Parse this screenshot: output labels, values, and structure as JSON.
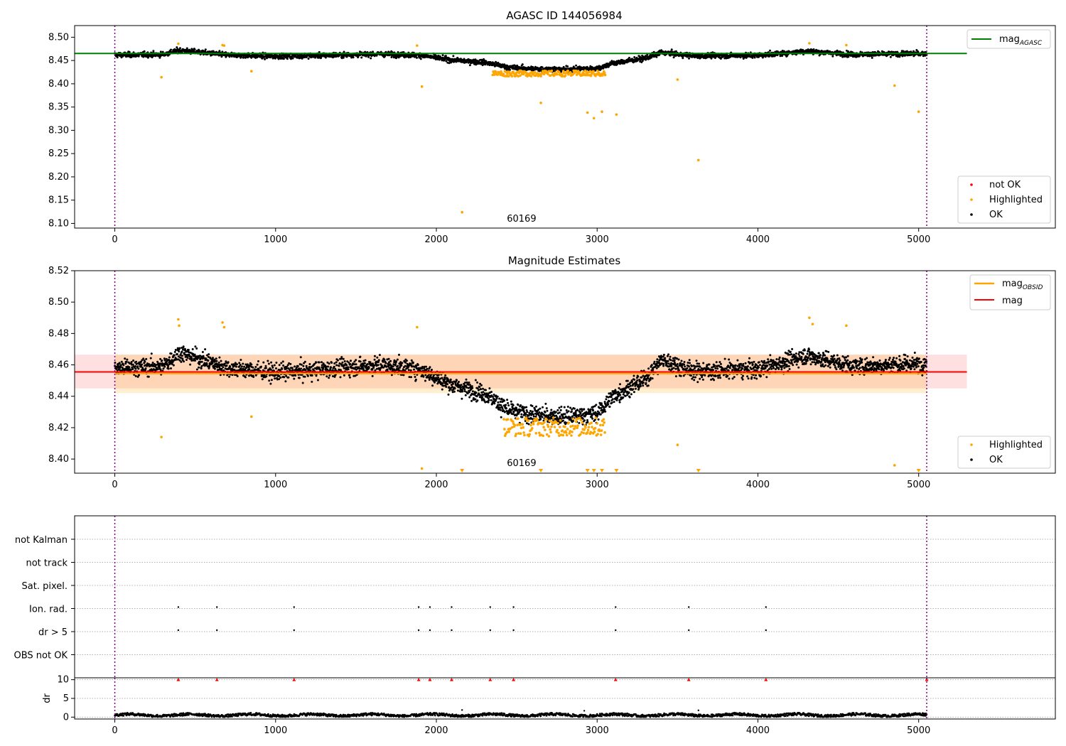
{
  "chart_data": [
    {
      "type": "scatter",
      "title": "AGASC ID 144056984",
      "xlim": [
        -250,
        5850
      ],
      "ylim": [
        8.09,
        8.525
      ],
      "xticks": [
        0,
        1000,
        2000,
        3000,
        4000,
        5000
      ],
      "yticks": [
        8.1,
        8.15,
        8.2,
        8.25,
        8.3,
        8.35,
        8.4,
        8.45,
        8.5
      ],
      "ytick_labels": [
        "8.10",
        "8.15",
        "8.20",
        "8.25",
        "8.30",
        "8.35",
        "8.40",
        "8.45",
        "8.50"
      ],
      "vlines": [
        0,
        5050
      ],
      "hline": {
        "name": "mag_AGASC",
        "y": 8.465,
        "x": [
          -250,
          5300
        ],
        "color": "#008000"
      },
      "annotation": {
        "text": "60169",
        "x": 2530,
        "y": 8.104
      },
      "series": [
        {
          "name": "not OK",
          "color": "#ff0000",
          "points": []
        },
        {
          "name": "Highlighted",
          "color": "#ffa500",
          "points": [
            [
              290,
              8.414
            ],
            [
              395,
              8.486
            ],
            [
              670,
              8.483
            ],
            [
              680,
              8.482
            ],
            [
              850,
              8.427
            ],
            [
              1880,
              8.482
            ],
            [
              1910,
              8.394
            ],
            [
              2160,
              8.124
            ],
            [
              2650,
              8.359
            ],
            [
              2940,
              8.338
            ],
            [
              2980,
              8.326
            ],
            [
              3030,
              8.34
            ],
            [
              3120,
              8.334
            ],
            [
              3500,
              8.409
            ],
            [
              3630,
              8.236
            ],
            [
              4320,
              8.487
            ],
            [
              4550,
              8.483
            ],
            [
              4850,
              8.396
            ],
            [
              5000,
              8.34
            ]
          ],
          "band": {
            "x": [
              2350,
              3050
            ],
            "center": 8.422,
            "half": 0.006
          }
        },
        {
          "name": "OK",
          "color": "#000000",
          "points": []
        }
      ],
      "trend": {
        "x": [
          0,
          300,
          400,
          700,
          1000,
          1300,
          1650,
          1900,
          2100,
          2300,
          2450,
          2600,
          2800,
          3000,
          3100,
          3300,
          3400,
          3600,
          4000,
          4300,
          4600,
          5050
        ],
        "y": [
          8.462,
          8.463,
          8.472,
          8.462,
          8.459,
          8.461,
          8.464,
          8.461,
          8.451,
          8.446,
          8.435,
          8.432,
          8.431,
          8.433,
          8.444,
          8.455,
          8.467,
          8.46,
          8.461,
          8.47,
          8.463,
          8.465
        ],
        "noise": 0.0055
      },
      "legend_top": [
        {
          "label": "mag",
          "sub": "AGASC",
          "color": "#008000"
        }
      ],
      "legend_bottom": [
        {
          "label": "not OK",
          "color": "#ff0000"
        },
        {
          "label": "Highlighted",
          "color": "#ffa500"
        },
        {
          "label": "OK",
          "color": "#000000"
        }
      ]
    },
    {
      "type": "scatter",
      "title": "Magnitude Estimates",
      "xlim": [
        -250,
        5850
      ],
      "ylim": [
        8.391,
        8.52
      ],
      "xticks": [
        0,
        1000,
        2000,
        3000,
        4000,
        5000
      ],
      "yticks": [
        8.4,
        8.42,
        8.44,
        8.46,
        8.48,
        8.5,
        8.52
      ],
      "ytick_labels": [
        "8.40",
        "8.42",
        "8.44",
        "8.46",
        "8.48",
        "8.50",
        "8.52"
      ],
      "vlines": [
        0,
        5050
      ],
      "mag_obsid": {
        "y": 8.4545,
        "x": [
          0,
          5050
        ],
        "band": [
          8.442,
          8.4665
        ],
        "color": "#ffa500"
      },
      "mag": {
        "y": 8.4555,
        "x": [
          -250,
          5300
        ],
        "band": [
          8.445,
          8.4665
        ],
        "color": "#ff0000"
      },
      "annotation": {
        "text": "60169",
        "x": 2530,
        "y": 8.3955
      },
      "series": [
        {
          "name": "Highlighted",
          "color": "#ffa500",
          "points": [
            [
              290,
              8.414
            ],
            [
              395,
              8.489
            ],
            [
              400,
              8.485
            ],
            [
              670,
              8.487
            ],
            [
              680,
              8.484
            ],
            [
              850,
              8.427
            ],
            [
              1880,
              8.484
            ],
            [
              1910,
              8.394
            ],
            [
              3500,
              8.409
            ],
            [
              4320,
              8.49
            ],
            [
              4340,
              8.486
            ],
            [
              4550,
              8.485
            ],
            [
              4850,
              8.396
            ]
          ],
          "band": {
            "x": [
              2420,
              3050
            ],
            "center": 8.4205,
            "half": 0.006
          }
        },
        {
          "name": "OK",
          "color": "#000000",
          "points": []
        }
      ],
      "clipped_markers_x": [
        2160,
        2650,
        2940,
        2980,
        3030,
        3120,
        3630,
        5000
      ],
      "trend": {
        "x": [
          0,
          300,
          400,
          700,
          1000,
          1300,
          1650,
          1900,
          2100,
          2300,
          2450,
          2600,
          2800,
          3000,
          3100,
          3300,
          3400,
          3600,
          4000,
          4300,
          4600,
          5050
        ],
        "y": [
          8.458,
          8.459,
          8.468,
          8.458,
          8.455,
          8.457,
          8.46,
          8.457,
          8.447,
          8.442,
          8.431,
          8.428,
          8.427,
          8.429,
          8.44,
          8.451,
          8.463,
          8.456,
          8.457,
          8.466,
          8.459,
          8.461
        ],
        "noise": 0.0055
      },
      "legend_top": [
        {
          "label": "mag",
          "sub": "OBSID",
          "color": "#ffa500"
        },
        {
          "label": "mag",
          "sub": "",
          "color": "#ff0000"
        }
      ],
      "legend_bottom": [
        {
          "label": "Highlighted",
          "color": "#ffa500"
        },
        {
          "label": "OK",
          "color": "#000000"
        }
      ]
    },
    {
      "type": "scatter",
      "xlim": [
        -250,
        5850
      ],
      "xticks": [
        0,
        1000,
        2000,
        3000,
        4000,
        5000
      ],
      "vlines": [
        0,
        5050
      ],
      "categories": [
        "not Kalman",
        "not track",
        "Sat. pixel.",
        "Ion. rad.",
        "dr > 5",
        "OBS not OK"
      ],
      "flag_points": {
        "Ion. rad.": [
          395,
          635,
          1115,
          1890,
          1960,
          2095,
          2335,
          2480,
          3115,
          3570,
          4050
        ],
        "dr > 5": [
          395,
          635,
          1115,
          1890,
          1960,
          2095,
          2335,
          2480,
          3115,
          3570,
          4050
        ]
      }
    },
    {
      "type": "scatter",
      "xlim": [
        -250,
        5850
      ],
      "ylim": [
        -0.5,
        10.5
      ],
      "xticks": [
        0,
        1000,
        2000,
        3000,
        4000,
        5000
      ],
      "xtick_labels": [
        "0",
        "1000",
        "2000",
        "3000",
        "4000",
        "5000"
      ],
      "yticks": [
        0,
        5,
        10
      ],
      "ytick_labels": [
        "0",
        "5",
        "10"
      ],
      "ylabel": "dr",
      "vlines": [
        0,
        5050
      ],
      "clipped_dr_x": [
        395,
        635,
        1115,
        1890,
        1960,
        2095,
        2335,
        2480,
        3115,
        3570,
        4050,
        5050
      ],
      "dr_outliers": [
        [
          2160,
          1.9
        ],
        [
          2920,
          1.7
        ],
        [
          3630,
          1.8
        ]
      ],
      "dr_baseline": {
        "mean": 0.55,
        "noise": 0.35,
        "color": "#000000"
      }
    }
  ]
}
